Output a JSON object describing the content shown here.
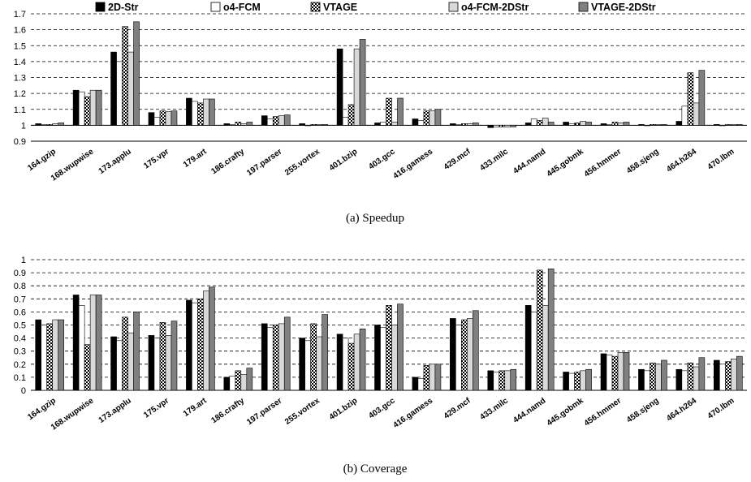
{
  "legend": [
    "2D-Str",
    "o4-FCM",
    "VTAGE",
    "o4-FCM-2DStr",
    "VTAGE-2DStr"
  ],
  "series_styles": [
    {
      "fill": "#000000"
    },
    {
      "fill": "#ffffff"
    },
    {
      "fill": "pattern-checker"
    },
    {
      "fill": "#d9d9d9"
    },
    {
      "fill": "#808080"
    }
  ],
  "chart_data": [
    {
      "type": "bar",
      "caption": "(a) Speedup",
      "categories": [
        "164.gzip",
        "168.wupwise",
        "173.applu",
        "175.vpr",
        "179.art",
        "186.crafty",
        "197.parser",
        "255.vortex",
        "401.bzip",
        "403.gcc",
        "416.gamess",
        "429.mcf",
        "433.milc",
        "444.namd",
        "445.gobmk",
        "456.hmmer",
        "458.sjeng",
        "464.h264",
        "470.lbm"
      ],
      "ylim": [
        0.9,
        1.7
      ],
      "yticks": [
        0.9,
        1,
        1.1,
        1.2,
        1.3,
        1.4,
        1.5,
        1.6,
        1.7
      ],
      "ytick_labels": [
        "0.9",
        "1",
        "1.1",
        "1.2",
        "1.3",
        "1.4",
        "1.5",
        "1.6",
        "1.7"
      ],
      "baseline": 1.0,
      "grid": true,
      "series": [
        {
          "name": "2D-Str",
          "values": [
            1.01,
            1.22,
            1.46,
            1.08,
            1.17,
            1.01,
            1.06,
            1.01,
            1.48,
            1.015,
            1.04,
            1.01,
            0.985,
            1.015,
            1.02,
            1.01,
            1.005,
            1.025,
            1.005
          ]
        },
        {
          "name": "o4-FCM",
          "values": [
            1.005,
            1.21,
            1.4,
            1.05,
            1.15,
            1.005,
            1.04,
            1.0,
            1.05,
            1.02,
            1.03,
            1.005,
            0.99,
            1.04,
            1.01,
            1.005,
            1.0,
            1.12,
            1.0
          ]
        },
        {
          "name": "VTAGE",
          "values": [
            1.005,
            1.18,
            1.62,
            1.09,
            1.14,
            1.02,
            1.055,
            1.005,
            1.13,
            1.17,
            1.09,
            1.01,
            0.99,
            1.03,
            1.015,
            1.02,
            1.005,
            1.33,
            1.005
          ]
        },
        {
          "name": "o4-FCM-2DStr",
          "values": [
            1.01,
            1.22,
            1.46,
            1.085,
            1.165,
            1.01,
            1.06,
            1.005,
            1.48,
            1.02,
            1.09,
            1.01,
            0.99,
            1.045,
            1.025,
            1.015,
            1.005,
            1.14,
            1.005
          ]
        },
        {
          "name": "VTAGE-2DStr",
          "values": [
            1.015,
            1.22,
            1.65,
            1.09,
            1.165,
            1.02,
            1.065,
            1.005,
            1.54,
            1.17,
            1.1,
            1.015,
            0.99,
            1.02,
            1.02,
            1.02,
            1.005,
            1.345,
            1.005
          ]
        }
      ]
    },
    {
      "type": "bar",
      "caption": "(b) Coverage",
      "categories": [
        "164.gzip",
        "168.wupwise",
        "173.applu",
        "175.vpr",
        "179.art",
        "186.crafty",
        "197.parser",
        "255.vortex",
        "401.bzip",
        "403.gcc",
        "416.gamess",
        "429.mcf",
        "433.milc",
        "444.namd",
        "445.gobmk",
        "456.hmmer",
        "458.sjeng",
        "464.h264",
        "470.lbm"
      ],
      "ylim": [
        0,
        1
      ],
      "yticks": [
        0,
        0.1,
        0.2,
        0.3,
        0.4,
        0.5,
        0.6,
        0.7,
        0.8,
        0.9,
        1
      ],
      "ytick_labels": [
        "0",
        "0.1",
        "0.2",
        "0.3",
        "0.4",
        "0.5",
        "0.6",
        "0.7",
        "0.8",
        "0.9",
        "1"
      ],
      "baseline": 0,
      "grid": true,
      "series": [
        {
          "name": "2D-Str",
          "values": [
            0.54,
            0.73,
            0.41,
            0.42,
            0.69,
            0.1,
            0.51,
            0.4,
            0.43,
            0.5,
            0.1,
            0.55,
            0.15,
            0.65,
            0.14,
            0.28,
            0.16,
            0.16,
            0.23
          ]
        },
        {
          "name": "o4-FCM",
          "values": [
            0.5,
            0.65,
            0.38,
            0.4,
            0.67,
            0.11,
            0.48,
            0.38,
            0.4,
            0.48,
            0.09,
            0.5,
            0.14,
            0.6,
            0.13,
            0.27,
            0.15,
            0.15,
            0.2
          ]
        },
        {
          "name": "VTAGE",
          "values": [
            0.51,
            0.35,
            0.56,
            0.52,
            0.7,
            0.15,
            0.5,
            0.51,
            0.36,
            0.65,
            0.19,
            0.54,
            0.15,
            0.92,
            0.14,
            0.26,
            0.21,
            0.21,
            0.22
          ]
        },
        {
          "name": "o4-FCM-2DStr",
          "values": [
            0.54,
            0.73,
            0.44,
            0.42,
            0.76,
            0.12,
            0.51,
            0.41,
            0.43,
            0.5,
            0.2,
            0.55,
            0.15,
            0.65,
            0.15,
            0.29,
            0.2,
            0.18,
            0.24
          ]
        },
        {
          "name": "VTAGE-2DStr",
          "values": [
            0.54,
            0.73,
            0.6,
            0.53,
            0.79,
            0.17,
            0.56,
            0.58,
            0.47,
            0.66,
            0.2,
            0.61,
            0.16,
            0.93,
            0.16,
            0.29,
            0.23,
            0.25,
            0.26
          ]
        }
      ]
    }
  ]
}
